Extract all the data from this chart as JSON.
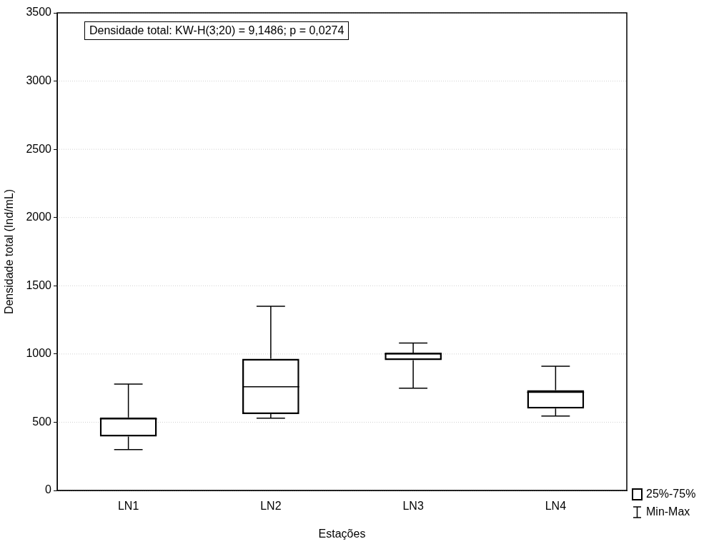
{
  "chart_data": {
    "type": "box",
    "xlabel": "Estações",
    "ylabel": "Densidade total (Ind/mL)",
    "categories": [
      "LN1",
      "LN2",
      "LN3",
      "LN4"
    ],
    "boxes": [
      {
        "low": 300,
        "q1": 395,
        "median": 525,
        "q3": 535,
        "high": 780
      },
      {
        "low": 530,
        "q1": 560,
        "median": 760,
        "q3": 965,
        "high": 1350
      },
      {
        "low": 750,
        "q1": 955,
        "median": 1000,
        "q3": 1010,
        "high": 1080
      },
      {
        "low": 545,
        "q1": 600,
        "median": 720,
        "q3": 735,
        "high": 910
      }
    ],
    "color": "#000000",
    "ylim": [
      0,
      3500
    ],
    "yticks": [
      0,
      500,
      1000,
      1500,
      2000,
      2500,
      3000,
      3500
    ],
    "grid": "y",
    "annotations": [
      "Densidade total:  KW-H(3;20) = 9,1486; p = 0,0274",
      "25%-75%",
      "Min-Max"
    ]
  }
}
